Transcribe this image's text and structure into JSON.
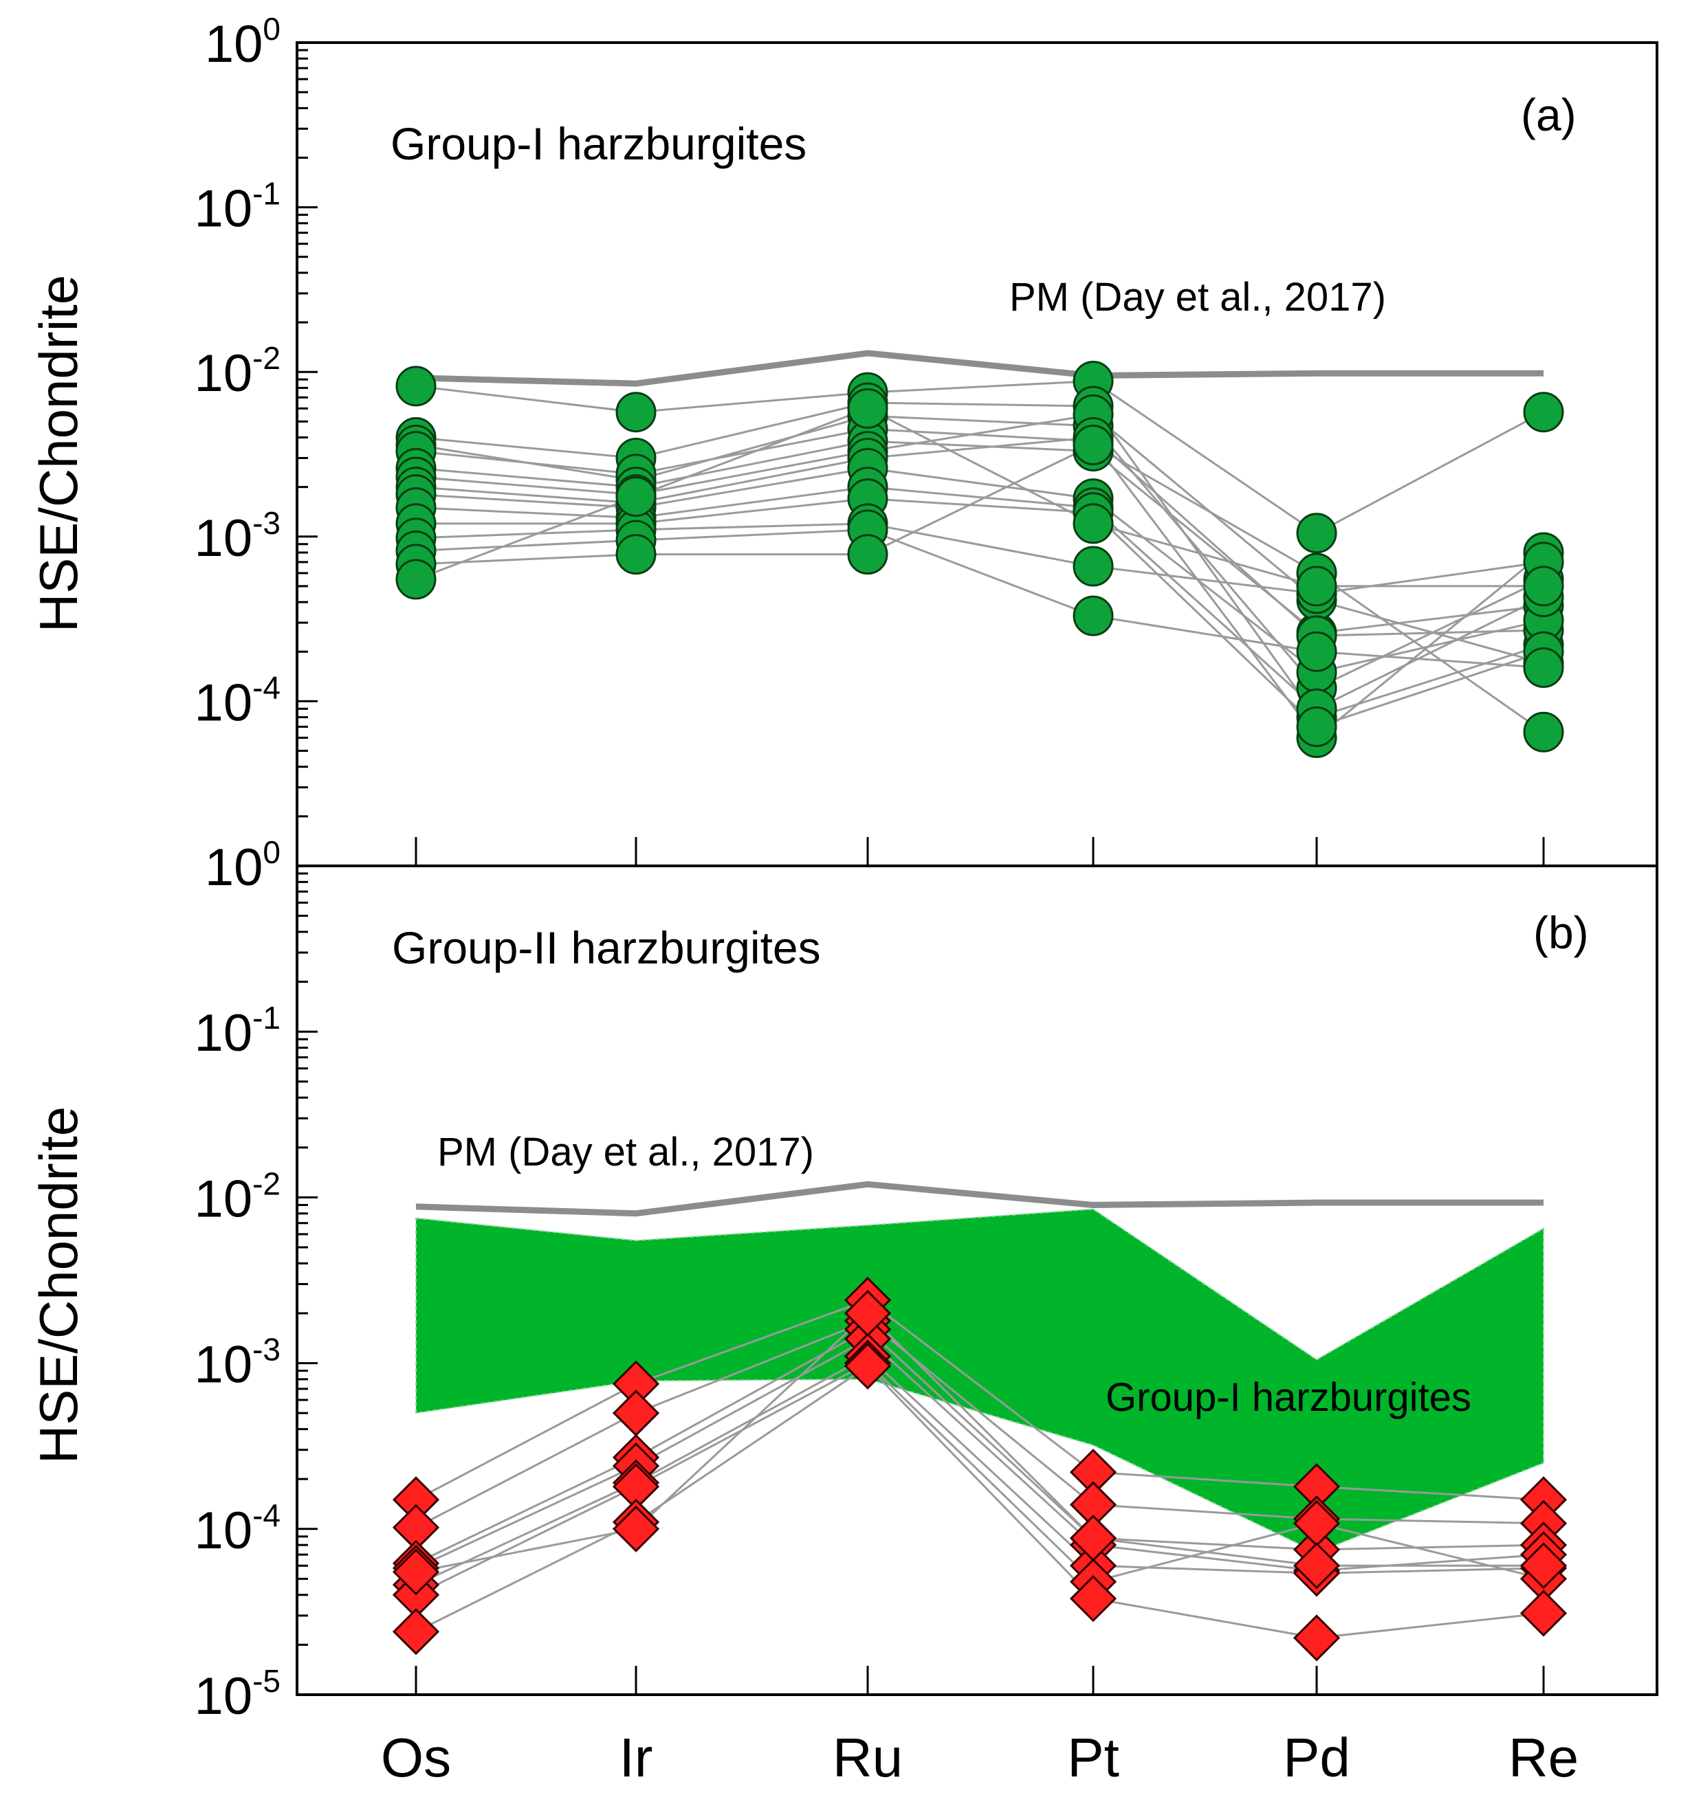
{
  "chart_data": [
    {
      "panel": "(a)",
      "type": "line",
      "title": "Group-I harzburgites",
      "ylabel": "HSE/Chondrite",
      "yscale": "log",
      "ylim": [
        1e-05,
        1
      ],
      "y_tick_labels": [
        {
          "base": "10",
          "exp": "-1",
          "value": 0.1
        },
        {
          "base": "10",
          "exp": "-2",
          "value": 0.01
        },
        {
          "base": "10",
          "exp": "-3",
          "value": 0.001
        },
        {
          "base": "10",
          "exp": "-4",
          "value": 0.0001
        }
      ],
      "top_tick_label": {
        "base": "10",
        "exp": "0"
      },
      "categories": [
        "Os",
        "Ir",
        "Ru",
        "Pt",
        "Pd",
        "Re"
      ],
      "reference": {
        "name": "PM (Day et al., 2017)",
        "values": [
          0.0092,
          0.0085,
          0.013,
          0.0095,
          0.0098,
          0.0098
        ],
        "color": "#8c8c8c"
      },
      "marker": {
        "shape": "circle",
        "fill": "#0ea33a",
        "stroke": "#0a3d14"
      },
      "line_color": "#9a9a9a",
      "series": [
        {
          "values": [
            0.0082,
            0.0057,
            0.0075,
            0.0088,
            0.00105,
            0.0057
          ]
        },
        {
          "values": [
            0.004,
            0.003,
            0.0065,
            0.0062,
            8e-05,
            0.00022
          ]
        },
        {
          "values": [
            0.0036,
            0.0022,
            0.0054,
            0.0047,
            0.00012,
            0.00055
          ]
        },
        {
          "values": [
            0.0033,
            0.0024,
            0.0045,
            0.0038,
            6e-05,
            0.0008
          ]
        },
        {
          "values": [
            0.0026,
            0.002,
            0.0038,
            0.0033,
            0.00026,
            0.00038
          ]
        },
        {
          "values": [
            0.0023,
            0.0018,
            0.0033,
            0.0055,
            0.00041,
            0.00017
          ]
        },
        {
          "values": [
            0.002,
            0.0016,
            0.003,
            0.004,
            0.00025,
            0.00027
          ]
        },
        {
          "values": [
            0.0018,
            0.0015,
            0.0026,
            0.0017,
            0.00015,
            0.00031
          ]
        },
        {
          "values": [
            0.0015,
            0.0013,
            0.002,
            0.0015,
            9e-05,
            0.00043
          ]
        },
        {
          "values": [
            0.0012,
            0.0012,
            0.0017,
            0.0014,
            7e-05,
            0.0002
          ]
        },
        {
          "values": [
            0.00098,
            0.0011,
            0.0012,
            0.00066,
            0.00045,
            0.0007
          ]
        },
        {
          "values": [
            0.00082,
            0.00095,
            0.0011,
            0.00033,
            0.0002,
            0.00016
          ]
        },
        {
          "values": [
            0.00068,
            0.00078,
            0.00078,
            0.0036,
            0.0006,
            6.5e-05
          ]
        },
        {
          "values": [
            0.00055,
            0.00175,
            0.006,
            0.0012,
            0.0005,
            0.0005
          ]
        }
      ]
    },
    {
      "panel": "(b)",
      "type": "line",
      "title": "Group-II harzburgites",
      "ylabel": "HSE/Chondrite",
      "yscale": "log",
      "ylim": [
        1e-05,
        1
      ],
      "y_tick_labels": [
        {
          "base": "10",
          "exp": "0",
          "value": 1
        },
        {
          "base": "10",
          "exp": "-1",
          "value": 0.1
        },
        {
          "base": "10",
          "exp": "-2",
          "value": 0.01
        },
        {
          "base": "10",
          "exp": "-3",
          "value": 0.001
        },
        {
          "base": "10",
          "exp": "-4",
          "value": 0.0001
        },
        {
          "base": "10",
          "exp": "-5",
          "value": 1e-05
        }
      ],
      "categories": [
        "Os",
        "Ir",
        "Ru",
        "Pt",
        "Pd",
        "Re"
      ],
      "reference": {
        "name": "PM (Day et al., 2017)",
        "values": [
          0.0088,
          0.008,
          0.012,
          0.009,
          0.0093,
          0.0093
        ],
        "color": "#8c8c8c"
      },
      "field": {
        "name": "Group-I harzburgites",
        "upper": [
          0.0075,
          0.0055,
          0.0068,
          0.0085,
          0.00105,
          0.0065
        ],
        "lower": [
          0.0005,
          0.00078,
          0.0008,
          0.00032,
          7.2e-05,
          0.00025
        ],
        "color": "#00b52a"
      },
      "marker": {
        "shape": "diamond",
        "fill": "#ff2020",
        "stroke": "#3a0000"
      },
      "line_color": "#9a9a9a",
      "series": [
        {
          "values": [
            0.00015,
            0.00075,
            0.0024,
            0.00022,
            0.00018,
            0.00015
          ]
        },
        {
          "values": [
            0.000102,
            0.0005,
            0.0018,
            0.00014,
            0.000115,
            0.000108
          ]
        },
        {
          "values": [
            6.2e-05,
            0.00027,
            0.0016,
            8.8e-05,
            7.5e-05,
            8e-05
          ]
        },
        {
          "values": [
            5.8e-05,
            0.00024,
            0.0014,
            8e-05,
            5.6e-05,
            7e-05
          ]
        },
        {
          "values": [
            4.6e-05,
            0.00019,
            0.0011,
            6e-05,
            5.4e-05,
            5.8e-05
          ]
        },
        {
          "values": [
            4e-05,
            0.00018,
            0.001,
            4.8e-05,
            0.000108,
            5e-05
          ]
        },
        {
          "values": [
            2.4e-05,
            0.00011,
            0.00096,
            3.8e-05,
            2.2e-05,
            3.1e-05
          ]
        },
        {
          "values": [
            5.5e-05,
            0.0001,
            0.002,
            8.8e-05,
            6e-05,
            6e-05
          ]
        }
      ]
    }
  ]
}
